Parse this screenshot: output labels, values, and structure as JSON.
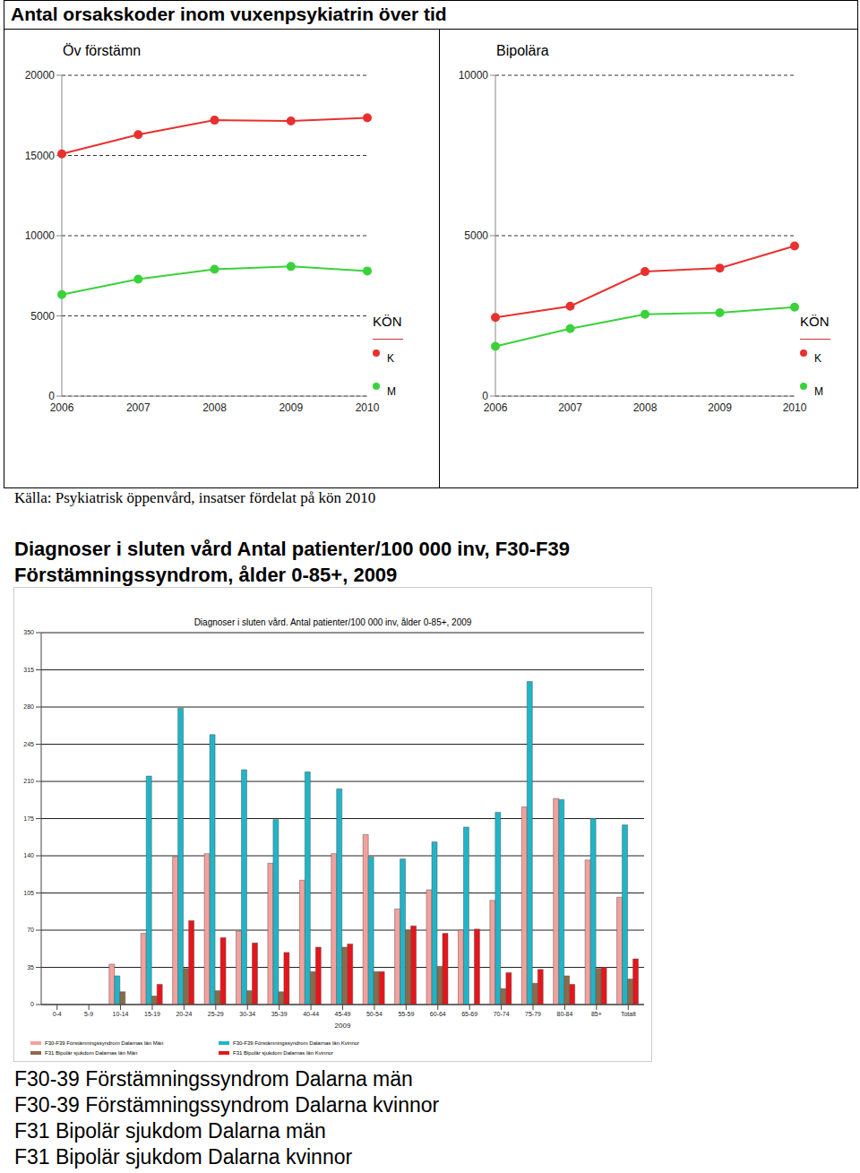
{
  "header": "Antal orsakskoder inom vuxenpsykiatrin över tid",
  "chart_data": [
    {
      "type": "line",
      "title": "Öv förstämn",
      "categories": [
        "2006",
        "2007",
        "2008",
        "2009",
        "2010"
      ],
      "series": [
        {
          "name": "K",
          "color": "#e8312f",
          "marker": "circle",
          "values": [
            15100,
            16300,
            17200,
            17150,
            17350
          ]
        },
        {
          "name": "M",
          "color": "#3ad23a",
          "marker": "circle",
          "values": [
            6330,
            7290,
            7910,
            8080,
            7800
          ]
        }
      ],
      "ylim": [
        0,
        20000
      ],
      "yticks": [
        0,
        5000,
        10000,
        15000,
        20000
      ],
      "grid": true,
      "legend": "right",
      "legend_title": "KÖN"
    },
    {
      "type": "line",
      "title": "Bipolära",
      "categories": [
        "2006",
        "2007",
        "2008",
        "2009",
        "2010"
      ],
      "series": [
        {
          "name": "K",
          "color": "#e8312f",
          "marker": "circle",
          "values": [
            2450,
            2800,
            3880,
            3990,
            4680
          ]
        },
        {
          "name": "M",
          "color": "#3ad23a",
          "marker": "circle",
          "values": [
            1550,
            2100,
            2550,
            2600,
            2770
          ]
        }
      ],
      "ylim": [
        0,
        10000
      ],
      "yticks": [
        0,
        5000,
        10000
      ],
      "grid": true,
      "legend": "right",
      "legend_title": "KÖN"
    },
    {
      "type": "bar",
      "title": "Diagnoser i sluten vård. Antal patienter/100 000 inv, ålder 0-85+, 2009",
      "x_label": "2009",
      "categories": [
        "0-4",
        "5-9",
        "10-14",
        "15-19",
        "20-24",
        "25-29",
        "30-34",
        "35-39",
        "40-44",
        "45-49",
        "50-54",
        "55-59",
        "60-64",
        "65-69",
        "70-74",
        "75-79",
        "80-84",
        "85+",
        "Totalt"
      ],
      "series": [
        {
          "name": "F30-F39 Förstämningssyndrom Dalarnas län Män",
          "color": "#f4a09c",
          "values": [
            0,
            0,
            38,
            67,
            139,
            142,
            69,
            133,
            117,
            142,
            160,
            90,
            108,
            70,
            98,
            186,
            194,
            136,
            101
          ]
        },
        {
          "name": "F30-F39 Förstämningssyndrom Dalarnas län Kvinnor",
          "color": "#1fb5c8",
          "values": [
            0,
            0,
            27,
            215,
            279,
            254,
            221,
            174,
            219,
            203,
            139,
            137,
            153,
            167,
            181,
            304,
            193,
            175,
            169
          ]
        },
        {
          "name": "F31 Bipolär sjukdom Dalarnas län Män",
          "color": "#8b6a4a",
          "values": [
            0,
            0,
            12,
            8,
            34,
            13,
            13,
            12,
            31,
            54,
            31,
            70,
            36,
            0,
            15,
            20,
            27,
            34,
            24
          ]
        },
        {
          "name": "F31 Bipolär sjukdom Dalarnas län Kvinnor",
          "color": "#e8141a",
          "values": [
            0,
            0,
            0,
            19,
            79,
            63,
            58,
            49,
            54,
            57,
            31,
            74,
            67,
            71,
            30,
            33,
            19,
            35,
            43
          ]
        }
      ],
      "ylim": [
        0,
        350
      ],
      "yticks": [
        0,
        35,
        70,
        105,
        140,
        175,
        210,
        245,
        280,
        315,
        350
      ],
      "grid": true,
      "legend": "bottom"
    }
  ],
  "source": "Källa: Psykiatrisk öppenvård, insatser fördelat på kön 2010",
  "heading": [
    "Diagnoser i sluten vård Antal patienter/100 000 inv, F30-F39",
    "Förstämningssyndrom, ålder 0-85+, 2009"
  ],
  "notes": [
    "F30-39 Förstämningssyndrom Dalarna män",
    "F30-39 Förstämningssyndrom Dalarna kvinnor",
    "F31 Bipolär sjukdom Dalarna män",
    "F31 Bipolär sjukdom Dalarna kvinnor"
  ]
}
